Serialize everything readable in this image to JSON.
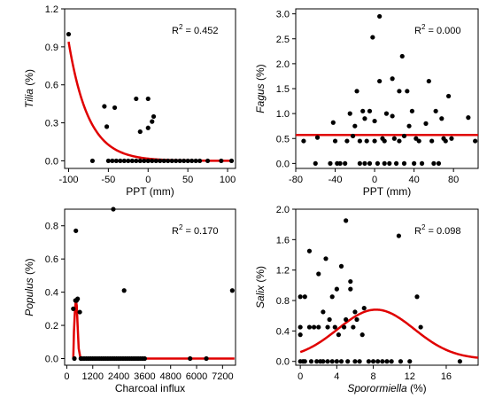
{
  "chart_data": [
    {
      "type": "scatter",
      "xlabel": "PPT (mm)",
      "ylabel": "Tilia (%)",
      "ylabel_italic": true,
      "xlabel_italic_part": "",
      "annotation": "R² = 0.452",
      "r2_value": "0.452",
      "xlim": [
        -105,
        110
      ],
      "ylim": [
        -0.06,
        1.2
      ],
      "xticks": [
        -100,
        -50,
        0,
        50,
        100
      ],
      "yticks": [
        0.0,
        0.3,
        0.6,
        0.9,
        1.2
      ],
      "ytick_format": 1,
      "fit_color": "#e00000",
      "fit": {
        "kind": "exp",
        "a": 0.94,
        "b": 0.04,
        "x0": -100,
        "x1": 105
      },
      "points": [
        [
          -100,
          1.0
        ],
        [
          -70,
          0.0
        ],
        [
          -55,
          0.43
        ],
        [
          -52,
          0.27
        ],
        [
          -42,
          0.42
        ],
        [
          -15,
          0.49
        ],
        [
          -10,
          0.23
        ],
        [
          0,
          0.49
        ],
        [
          0,
          0.26
        ],
        [
          5,
          0.31
        ],
        [
          7,
          0.35
        ],
        [
          -50,
          0.0
        ],
        [
          -45,
          0.0
        ],
        [
          -40,
          0.0
        ],
        [
          -35,
          0.0
        ],
        [
          -30,
          0.0
        ],
        [
          -25,
          0.0
        ],
        [
          -20,
          0.0
        ],
        [
          -15,
          0.0
        ],
        [
          -10,
          0.0
        ],
        [
          -5,
          0.0
        ],
        [
          0,
          0.0
        ],
        [
          5,
          0.0
        ],
        [
          10,
          0.0
        ],
        [
          15,
          0.0
        ],
        [
          20,
          0.0
        ],
        [
          25,
          0.0
        ],
        [
          30,
          0.0
        ],
        [
          35,
          0.0
        ],
        [
          40,
          0.0
        ],
        [
          45,
          0.0
        ],
        [
          50,
          0.0
        ],
        [
          55,
          0.0
        ],
        [
          60,
          0.0
        ],
        [
          65,
          0.0
        ],
        [
          75,
          0.0
        ],
        [
          92,
          0.0
        ],
        [
          105,
          0.0
        ]
      ]
    },
    {
      "type": "scatter",
      "xlabel": "PPT (mm)",
      "ylabel": "Fagus (%)",
      "ylabel_italic": true,
      "annotation": "R² = 0.000",
      "r2_value": "0.000",
      "xlim": [
        -80,
        105
      ],
      "ylim": [
        -0.1,
        3.1
      ],
      "xticks": [
        -80,
        -40,
        0,
        40,
        80
      ],
      "yticks": [
        0.0,
        0.5,
        1.0,
        1.5,
        2.0,
        2.5,
        3.0
      ],
      "ytick_format": 1,
      "fit_color": "#e00000",
      "fit": {
        "kind": "const",
        "c": 0.57,
        "x0": -80,
        "x1": 105
      },
      "points": [
        [
          -72,
          0.45
        ],
        [
          -60,
          0.0
        ],
        [
          -58,
          0.52
        ],
        [
          -45,
          0.0
        ],
        [
          -42,
          0.82
        ],
        [
          -40,
          0.45
        ],
        [
          -38,
          0.0
        ],
        [
          -35,
          0.0
        ],
        [
          -30,
          0.0
        ],
        [
          -28,
          0.45
        ],
        [
          -25,
          1.0
        ],
        [
          -22,
          0.55
        ],
        [
          -20,
          0.75
        ],
        [
          -18,
          1.45
        ],
        [
          -15,
          0.45
        ],
        [
          -15,
          0.0
        ],
        [
          -12,
          1.05
        ],
        [
          -10,
          0.9
        ],
        [
          -10,
          0.0
        ],
        [
          -8,
          0.45
        ],
        [
          -5,
          1.05
        ],
        [
          -5,
          0.0
        ],
        [
          -2,
          2.53
        ],
        [
          0,
          0.85
        ],
        [
          0,
          0.45
        ],
        [
          3,
          0.0
        ],
        [
          5,
          2.95
        ],
        [
          5,
          1.65
        ],
        [
          8,
          0.5
        ],
        [
          10,
          0.45
        ],
        [
          10,
          0.0
        ],
        [
          12,
          1.0
        ],
        [
          15,
          0.0
        ],
        [
          18,
          1.7
        ],
        [
          18,
          0.95
        ],
        [
          20,
          0.5
        ],
        [
          22,
          0.0
        ],
        [
          25,
          1.45
        ],
        [
          25,
          0.45
        ],
        [
          28,
          2.15
        ],
        [
          30,
          0.55
        ],
        [
          30,
          0.0
        ],
        [
          33,
          1.45
        ],
        [
          35,
          0.75
        ],
        [
          38,
          1.05
        ],
        [
          40,
          0.0
        ],
        [
          42,
          0.5
        ],
        [
          45,
          0.45
        ],
        [
          48,
          0.0
        ],
        [
          52,
          0.8
        ],
        [
          55,
          1.65
        ],
        [
          58,
          0.45
        ],
        [
          60,
          0.0
        ],
        [
          62,
          1.05
        ],
        [
          65,
          0.0
        ],
        [
          68,
          0.9
        ],
        [
          70,
          0.5
        ],
        [
          72,
          0.45
        ],
        [
          75,
          1.35
        ],
        [
          78,
          0.5
        ],
        [
          95,
          0.92
        ],
        [
          102,
          0.45
        ]
      ]
    },
    {
      "type": "scatter",
      "xlabel": "Charcoal influx",
      "ylabel": "Populus (%)",
      "ylabel_italic": true,
      "annotation": "R² = 0.170",
      "r2_value": "0.170",
      "xlim": [
        -100,
        7800
      ],
      "ylim": [
        -0.04,
        0.9
      ],
      "xticks": [
        0,
        1200,
        2400,
        3600,
        4800,
        6000,
        7200
      ],
      "yticks": [
        0.0,
        0.2,
        0.4,
        0.6,
        0.8
      ],
      "ytick_format": 1,
      "fit_color": "#e00000",
      "fit": {
        "kind": "peak",
        "x0": 300,
        "x1": 7750
      },
      "points": [
        [
          300,
          0.3
        ],
        [
          350,
          0.0
        ],
        [
          400,
          0.35
        ],
        [
          420,
          0.77
        ],
        [
          450,
          0.35
        ],
        [
          500,
          0.36
        ],
        [
          600,
          0.28
        ],
        [
          650,
          0.0
        ],
        [
          700,
          0.0
        ],
        [
          800,
          0.0
        ],
        [
          900,
          0.0
        ],
        [
          1000,
          0.0
        ],
        [
          1100,
          0.0
        ],
        [
          1200,
          0.0
        ],
        [
          1300,
          0.0
        ],
        [
          1400,
          0.0
        ],
        [
          1500,
          0.0
        ],
        [
          1600,
          0.0
        ],
        [
          1700,
          0.0
        ],
        [
          1800,
          0.0
        ],
        [
          1900,
          0.0
        ],
        [
          2000,
          0.0
        ],
        [
          2100,
          0.0
        ],
        [
          2150,
          0.9
        ],
        [
          2200,
          0.0
        ],
        [
          2300,
          0.0
        ],
        [
          2400,
          0.0
        ],
        [
          2500,
          0.0
        ],
        [
          2600,
          0.0
        ],
        [
          2650,
          0.41
        ],
        [
          2700,
          0.0
        ],
        [
          2800,
          0.0
        ],
        [
          2900,
          0.0
        ],
        [
          3000,
          0.0
        ],
        [
          3100,
          0.0
        ],
        [
          3200,
          0.0
        ],
        [
          3300,
          0.0
        ],
        [
          3400,
          0.0
        ],
        [
          3500,
          0.0
        ],
        [
          3600,
          0.0
        ],
        [
          5700,
          0.0
        ],
        [
          6450,
          0.0
        ],
        [
          7650,
          0.41
        ]
      ]
    },
    {
      "type": "scatter",
      "xlabel": "Sporormiella (%)",
      "xlabel_italic_part": "Sporormiella",
      "ylabel": "Salix (%)",
      "ylabel_italic": true,
      "annotation": "R² = 0.098",
      "r2_value": "0.098",
      "xlim": [
        -0.5,
        19.5
      ],
      "ylim": [
        -0.05,
        2.0
      ],
      "xticks": [
        0,
        4,
        8,
        12,
        16
      ],
      "yticks": [
        0.0,
        0.4,
        0.8,
        1.2,
        1.6,
        2.0
      ],
      "ytick_format": 1,
      "fit_color": "#e00000",
      "fit": {
        "kind": "gauss",
        "base": 0.03,
        "amp": 0.65,
        "mu": 8.3,
        "sigma": 4.2,
        "x0": 0,
        "x1": 19.5
      },
      "points": [
        [
          0,
          0.35
        ],
        [
          0,
          0.85
        ],
        [
          0,
          0.45
        ],
        [
          0,
          0.0
        ],
        [
          0.3,
          0.0
        ],
        [
          0.5,
          0.85
        ],
        [
          0.5,
          0.0
        ],
        [
          1,
          1.45
        ],
        [
          1,
          0.45
        ],
        [
          1.2,
          0.0
        ],
        [
          1.5,
          0.45
        ],
        [
          1.8,
          0.0
        ],
        [
          2,
          1.15
        ],
        [
          2,
          0.45
        ],
        [
          2.2,
          0.0
        ],
        [
          2.5,
          0.65
        ],
        [
          2.5,
          0.0
        ],
        [
          2.8,
          1.35
        ],
        [
          3,
          0.45
        ],
        [
          3,
          0.0
        ],
        [
          3.2,
          0.55
        ],
        [
          3.5,
          0.85
        ],
        [
          3.5,
          0.0
        ],
        [
          3.8,
          0.45
        ],
        [
          4,
          0.0
        ],
        [
          4,
          0.95
        ],
        [
          4.2,
          0.35
        ],
        [
          4.5,
          1.25
        ],
        [
          4.5,
          0.0
        ],
        [
          4.8,
          0.45
        ],
        [
          5,
          1.85
        ],
        [
          5,
          0.55
        ],
        [
          5.2,
          0.0
        ],
        [
          5.5,
          1.05
        ],
        [
          5.5,
          0.95
        ],
        [
          5.8,
          0.45
        ],
        [
          6,
          0.0
        ],
        [
          6,
          0.65
        ],
        [
          6.2,
          0.55
        ],
        [
          6.5,
          0.0
        ],
        [
          6.8,
          0.35
        ],
        [
          7,
          0.7
        ],
        [
          7.5,
          0.0
        ],
        [
          8,
          0.0
        ],
        [
          8.5,
          0.0
        ],
        [
          9,
          0.0
        ],
        [
          9.5,
          0.0
        ],
        [
          10,
          0.0
        ],
        [
          10.8,
          1.65
        ],
        [
          11,
          0.0
        ],
        [
          12,
          0.0
        ],
        [
          12.8,
          0.85
        ],
        [
          13.2,
          0.45
        ],
        [
          17.5,
          0.0
        ]
      ]
    }
  ]
}
